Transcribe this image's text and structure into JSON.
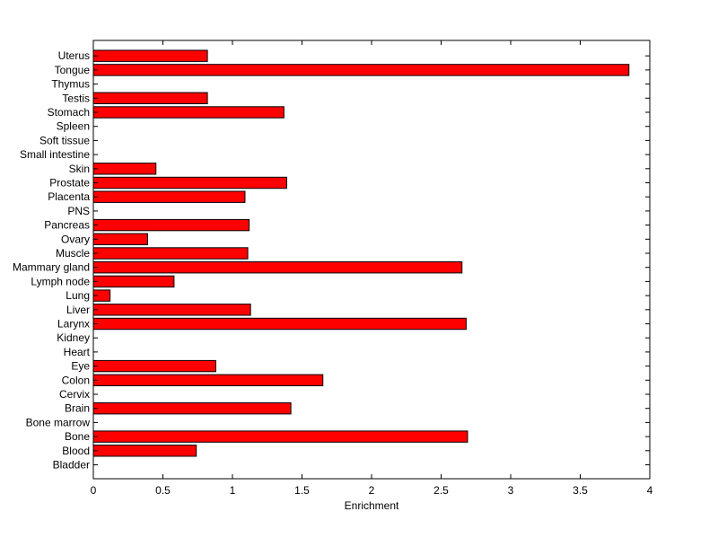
{
  "chart_data": {
    "type": "bar",
    "orientation": "horizontal",
    "title": "",
    "xlabel": "Enrichment",
    "ylabel": "",
    "xlim": [
      0,
      4
    ],
    "xticks": [
      "0",
      "0.5",
      "1",
      "1.5",
      "2",
      "2.5",
      "3",
      "3.5",
      "4"
    ],
    "grid": false,
    "legend": "none",
    "bar_color": "#ff0000",
    "categories": [
      "Bladder",
      "Blood",
      "Bone",
      "Bone marrow",
      "Brain",
      "Cervix",
      "Colon",
      "Eye",
      "Heart",
      "Kidney",
      "Larynx",
      "Liver",
      "Lung",
      "Lymph node",
      "Mammary gland",
      "Muscle",
      "Ovary",
      "Pancreas",
      "PNS",
      "Placenta",
      "Prostate",
      "Skin",
      "Small intestine",
      "Soft tissue",
      "Spleen",
      "Stomach",
      "Testis",
      "Thymus",
      "Tongue",
      "Uterus"
    ],
    "values": [
      0,
      0.74,
      2.69,
      0,
      1.42,
      0,
      1.65,
      0.88,
      0,
      0,
      2.68,
      1.13,
      0.12,
      0.58,
      2.65,
      1.11,
      0.39,
      1.12,
      0,
      1.09,
      1.39,
      0.45,
      0,
      0,
      0,
      1.37,
      0.82,
      0,
      3.85,
      0.82
    ]
  }
}
